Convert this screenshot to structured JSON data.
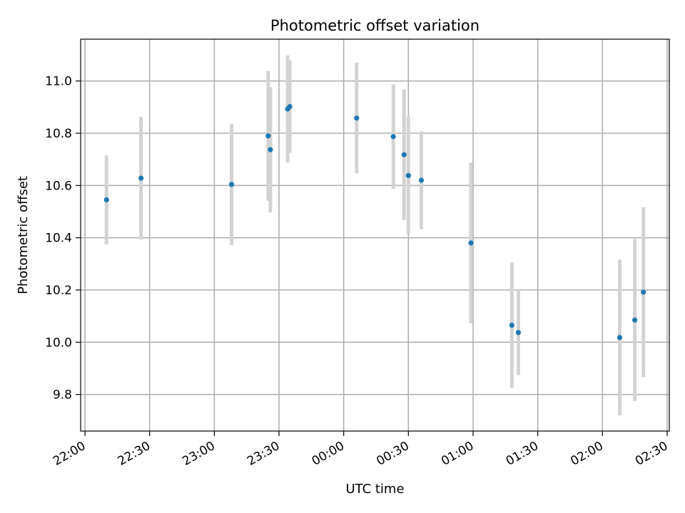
{
  "chart_data": {
    "type": "scatter",
    "title": "Photometric offset variation",
    "xlabel": "UTC time",
    "ylabel": "Photometric offset",
    "x_axis_kind": "time",
    "xlim": [
      "21:58",
      "02:31"
    ],
    "ylim": [
      9.66,
      11.16
    ],
    "x_ticks": [
      "22:00",
      "22:30",
      "23:00",
      "23:30",
      "00:00",
      "00:30",
      "01:00",
      "01:30",
      "02:00",
      "02:30"
    ],
    "y_ticks": [
      9.8,
      10.0,
      10.2,
      10.4,
      10.6,
      10.8,
      11.0
    ],
    "y_tick_labels": [
      "9.8",
      "10.0",
      "10.2",
      "10.4",
      "10.6",
      "10.8",
      "11.0"
    ],
    "grid": true,
    "marker_color": "#1f77b4",
    "errorbar_color": "#d3d3d3",
    "points": [
      {
        "time": "22:10",
        "y": 10.545,
        "err_low": 0.17,
        "err_high": 0.17
      },
      {
        "time": "22:26",
        "y": 10.628,
        "err_low": 0.235,
        "err_high": 0.235
      },
      {
        "time": "23:08",
        "y": 10.604,
        "err_low": 0.232,
        "err_high": 0.232
      },
      {
        "time": "23:25",
        "y": 10.79,
        "err_low": 0.248,
        "err_high": 0.248
      },
      {
        "time": "23:26",
        "y": 10.737,
        "err_low": 0.24,
        "err_high": 0.24
      },
      {
        "time": "23:34",
        "y": 10.893,
        "err_low": 0.205,
        "err_high": 0.205
      },
      {
        "time": "23:35",
        "y": 10.902,
        "err_low": 0.177,
        "err_high": 0.177
      },
      {
        "time": "00:06",
        "y": 10.858,
        "err_low": 0.212,
        "err_high": 0.212
      },
      {
        "time": "00:23",
        "y": 10.787,
        "err_low": 0.2,
        "err_high": 0.2
      },
      {
        "time": "00:28",
        "y": 10.718,
        "err_low": 0.25,
        "err_high": 0.25
      },
      {
        "time": "00:30",
        "y": 10.638,
        "err_low": 0.225,
        "err_high": 0.225
      },
      {
        "time": "00:36",
        "y": 10.62,
        "err_low": 0.187,
        "err_high": 0.187
      },
      {
        "time": "00:59",
        "y": 10.38,
        "err_low": 0.308,
        "err_high": 0.308
      },
      {
        "time": "01:18",
        "y": 10.065,
        "err_low": 0.24,
        "err_high": 0.24
      },
      {
        "time": "01:21",
        "y": 10.037,
        "err_low": 0.163,
        "err_high": 0.163
      },
      {
        "time": "02:08",
        "y": 10.018,
        "err_low": 0.298,
        "err_high": 0.298
      },
      {
        "time": "02:15",
        "y": 10.085,
        "err_low": 0.31,
        "err_high": 0.31
      },
      {
        "time": "02:19",
        "y": 10.192,
        "err_low": 0.325,
        "err_high": 0.325
      }
    ]
  }
}
